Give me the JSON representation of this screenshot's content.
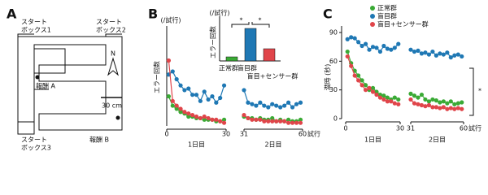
{
  "diagram": {
    "panel": "A",
    "start_boxes": [
      [
        "スタート",
        "ボックス1"
      ],
      [
        "スタート",
        "ボックス2"
      ],
      [
        "スタート",
        "ボックス3"
      ]
    ],
    "rewards": [
      "報酬 A",
      "報酬 B"
    ],
    "north": "N",
    "scale": "30 cm"
  },
  "chart_data": [
    {
      "type": "line",
      "panel": "B",
      "ylabel": "エラー回数",
      "yunit": "(/試行)",
      "xunit": "試行",
      "x_groups": [
        "1日目",
        "2日目"
      ],
      "x": [
        1,
        3,
        5,
        7,
        9,
        11,
        13,
        15,
        17,
        19,
        21,
        23,
        25,
        27,
        29,
        30,
        31,
        33,
        35,
        37,
        39,
        41,
        43,
        45,
        47,
        49,
        51,
        53,
        55,
        57,
        59
      ],
      "xticks": [
        0,
        30,
        31,
        60
      ],
      "ylim": [
        0,
        6
      ],
      "series": [
        {
          "color": "#1f78b4",
          "values": [
            3.3,
            3.5,
            3.0,
            2.6,
            2.3,
            2.4,
            2.0,
            2.0,
            1.6,
            2.2,
            1.7,
            1.9,
            1.5,
            1.8,
            2.6,
            null,
            2.3,
            1.5,
            1.4,
            1.3,
            1.5,
            1.3,
            1.2,
            1.4,
            1.3,
            1.2,
            1.3,
            1.5,
            1.2,
            1.4,
            1.5
          ]
        },
        {
          "color": "#3aaa35",
          "values": [
            1.9,
            1.3,
            1.1,
            0.9,
            0.8,
            0.6,
            0.6,
            0.5,
            0.5,
            0.4,
            0.4,
            0.4,
            0.3,
            0.3,
            0.4,
            null,
            0.6,
            0.5,
            0.5,
            0.4,
            0.5,
            0.4,
            0.4,
            0.5,
            0.3,
            0.4,
            0.3,
            0.4,
            0.3,
            0.3,
            0.4
          ]
        },
        {
          "color": "#e0454a",
          "values": [
            4.2,
            1.6,
            1.3,
            1.1,
            0.9,
            0.8,
            0.7,
            0.6,
            0.5,
            0.6,
            0.5,
            0.4,
            0.4,
            0.3,
            0.2,
            null,
            0.7,
            0.5,
            0.4,
            0.4,
            0.4,
            0.3,
            0.3,
            0.3,
            0.3,
            0.3,
            0.3,
            0.2,
            0.2,
            0.2,
            0.2
          ]
        }
      ]
    },
    {
      "type": "bar",
      "ylabel": "エラー回数",
      "yunit": "(/試行)",
      "categories": [
        "正常群",
        "盲目群",
        "盲目+センサー群"
      ],
      "values": [
        0.2,
        1.6,
        0.6
      ],
      "colors": [
        "#3aaa35",
        "#1f78b4",
        "#e0454a"
      ],
      "ylim": [
        0,
        2
      ],
      "annotations": [
        "*",
        "*"
      ]
    },
    {
      "type": "line",
      "panel": "C",
      "ylabel": "潜時 (秒)",
      "xunit": "試行",
      "x_groups": [
        "1日目",
        "2日目"
      ],
      "x": [
        1,
        3,
        5,
        7,
        9,
        11,
        13,
        15,
        17,
        19,
        21,
        23,
        25,
        27,
        29,
        30,
        31,
        33,
        35,
        37,
        39,
        41,
        43,
        45,
        47,
        49,
        51,
        53,
        55,
        57,
        59
      ],
      "xticks": [
        0,
        30,
        31,
        60
      ],
      "ylim": [
        0,
        90
      ],
      "yticks": [
        0,
        30,
        60,
        90
      ],
      "annotation": "*",
      "series": [
        {
          "name": "正常群",
          "color": "#3aaa35",
          "values": [
            70,
            58,
            50,
            45,
            40,
            35,
            30,
            32,
            28,
            25,
            24,
            22,
            20,
            22,
            20,
            null,
            26,
            24,
            22,
            25,
            20,
            18,
            20,
            19,
            17,
            18,
            16,
            18,
            15,
            16,
            17
          ]
        },
        {
          "name": "盲目群",
          "color": "#1f78b4",
          "values": [
            83,
            85,
            84,
            80,
            76,
            78,
            72,
            75,
            74,
            70,
            76,
            73,
            72,
            74,
            78,
            null,
            72,
            70,
            71,
            68,
            69,
            67,
            70,
            66,
            68,
            67,
            69,
            64,
            66,
            67,
            65
          ]
        },
        {
          "name": "盲目+センサー群",
          "color": "#e0454a",
          "values": [
            65,
            55,
            45,
            40,
            35,
            30,
            32,
            28,
            25,
            22,
            20,
            18,
            18,
            16,
            15,
            null,
            20,
            16,
            15,
            14,
            13,
            14,
            12,
            12,
            11,
            12,
            10,
            11,
            10,
            11,
            10
          ]
        }
      ]
    }
  ]
}
